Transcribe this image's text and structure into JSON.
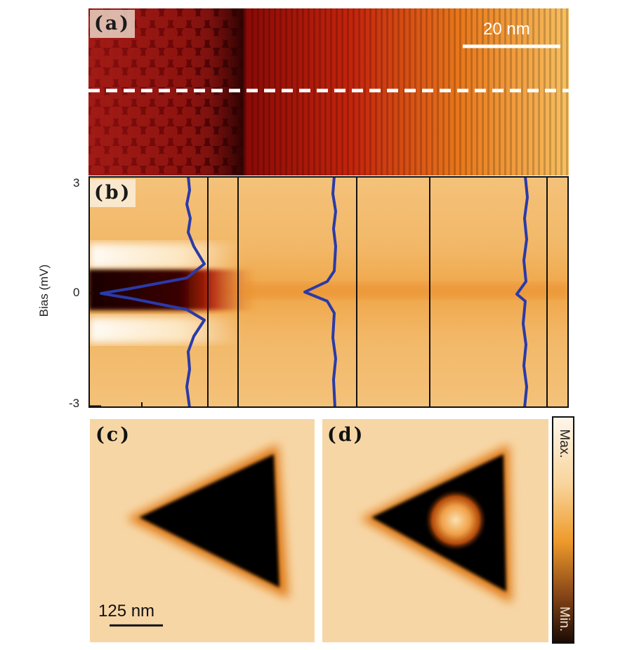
{
  "panels": {
    "a": {
      "label": "(a)",
      "scale_bar": "20 nm"
    },
    "b": {
      "label": "(b)",
      "y_axis_label": "Bias (mV)",
      "y_ticks": [
        "3",
        "0",
        "-3"
      ]
    },
    "c": {
      "label": "(c)",
      "scale_bar": "125 nm"
    },
    "d": {
      "label": "(d)"
    }
  },
  "colorbar": {
    "max_label": "Max.",
    "min_label": "Min."
  },
  "colors": {
    "hot_dark": "#1a0000",
    "hot_red": "#c81e0a",
    "hot_orange": "#f0a032",
    "hot_light": "#fbe7c8",
    "profile_line": "#2a3aa8"
  }
}
